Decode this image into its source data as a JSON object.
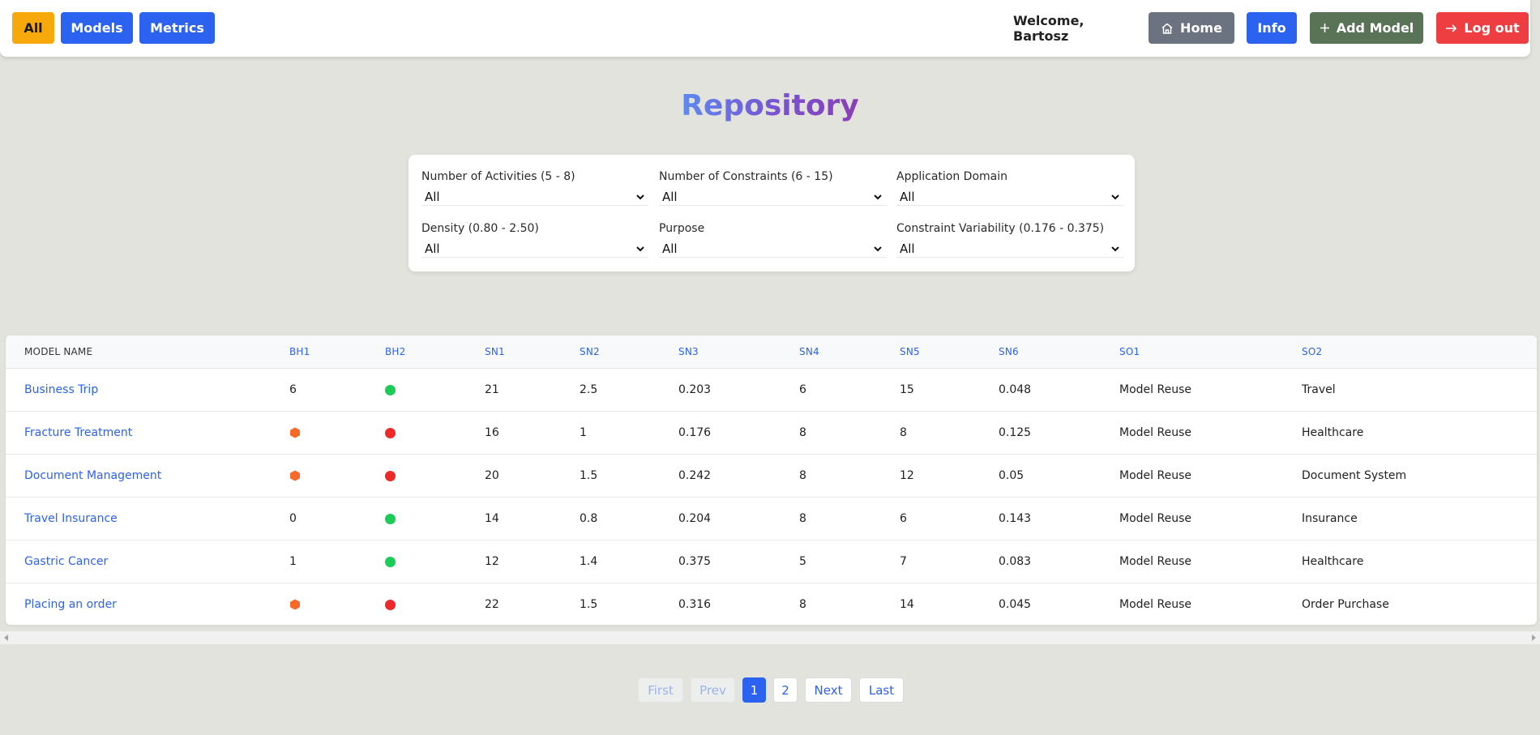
{
  "nav": {
    "all_label": "All",
    "models_label": "Models",
    "metrics_label": "Metrics",
    "welcome": "Welcome, Bartosz",
    "home_label": "Home",
    "info_label": "Info",
    "add_model_label": "Add Model",
    "logout_label": "Log out"
  },
  "page_title": "Repository",
  "filters": [
    {
      "label": "Number of Activities (5 - 8)",
      "value": "All"
    },
    {
      "label": "Number of Constraints (6 - 15)",
      "value": "All"
    },
    {
      "label": "Application Domain",
      "value": "All"
    },
    {
      "label": "Density (0.80 - 2.50)",
      "value": "All"
    },
    {
      "label": "Purpose",
      "value": "All"
    },
    {
      "label": "Constraint Variability (0.176 - 0.375)",
      "value": "All"
    }
  ],
  "table": {
    "headers": [
      "MODEL NAME",
      "BH1",
      "BH2",
      "SN1",
      "SN2",
      "SN3",
      "SN4",
      "SN5",
      "SN6",
      "SO1",
      "SO2"
    ],
    "rows": [
      {
        "name": "Business Trip",
        "bh1": "6",
        "bh2": "green",
        "sn1": "21",
        "sn2": "2.5",
        "sn3": "0.203",
        "sn4": "6",
        "sn5": "15",
        "sn6": "0.048",
        "so1": "Model Reuse",
        "so2": "Travel"
      },
      {
        "name": "Fracture Treatment",
        "bh1": "orange",
        "bh2": "red",
        "sn1": "16",
        "sn2": "1",
        "sn3": "0.176",
        "sn4": "8",
        "sn5": "8",
        "sn6": "0.125",
        "so1": "Model Reuse",
        "so2": "Healthcare"
      },
      {
        "name": "Document Management",
        "bh1": "orange",
        "bh2": "red",
        "sn1": "20",
        "sn2": "1.5",
        "sn3": "0.242",
        "sn4": "8",
        "sn5": "12",
        "sn6": "0.05",
        "so1": "Model Reuse",
        "so2": "Document System"
      },
      {
        "name": "Travel Insurance",
        "bh1": "0",
        "bh2": "green",
        "sn1": "14",
        "sn2": "0.8",
        "sn3": "0.204",
        "sn4": "8",
        "sn5": "6",
        "sn6": "0.143",
        "so1": "Model Reuse",
        "so2": "Insurance"
      },
      {
        "name": "Gastric Cancer",
        "bh1": "1",
        "bh2": "green",
        "sn1": "12",
        "sn2": "1.4",
        "sn3": "0.375",
        "sn4": "5",
        "sn5": "7",
        "sn6": "0.083",
        "so1": "Model Reuse",
        "so2": "Healthcare"
      },
      {
        "name": "Placing an order",
        "bh1": "orange",
        "bh2": "red",
        "sn1": "22",
        "sn2": "1.5",
        "sn3": "0.316",
        "sn4": "8",
        "sn5": "14",
        "sn6": "0.045",
        "so1": "Model Reuse",
        "so2": "Order Purchase"
      }
    ]
  },
  "pagination": {
    "first": "First",
    "prev": "Prev",
    "page1": "1",
    "page2": "2",
    "next": "Next",
    "last": "Last"
  },
  "colors": {
    "accent": "#2c62f0",
    "all_button": "#f7a90c",
    "home_button": "#6b7280",
    "add_button": "#587356",
    "logout_button": "#ef3e42",
    "status_green": "#1ccc56",
    "status_red": "#ec2a2a",
    "status_orange": "#f6692a"
  }
}
